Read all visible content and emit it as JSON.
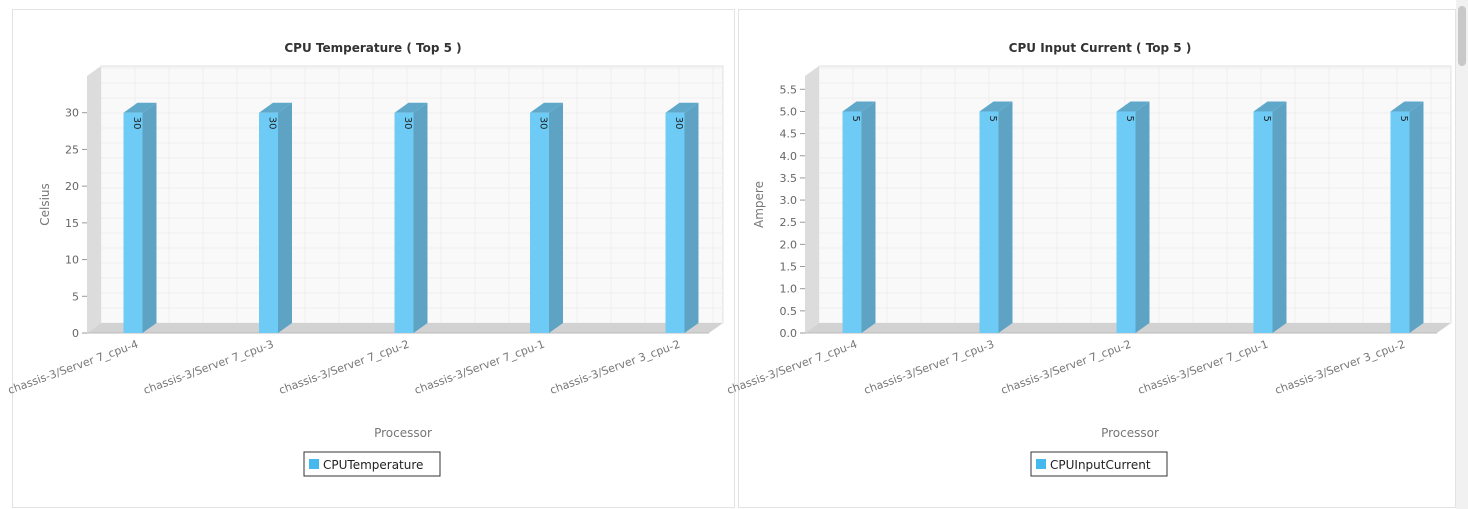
{
  "chart_data": [
    {
      "type": "bar",
      "title": "CPU Temperature ( Top 5 )",
      "xlabel": "Processor",
      "ylabel": "Celsius",
      "categories": [
        "chassis-3/Server 7_cpu-4",
        "chassis-3/Server 7_cpu-3",
        "chassis-3/Server 7_cpu-2",
        "chassis-3/Server 7_cpu-1",
        "chassis-3/Server 3_cpu-2"
      ],
      "series": [
        {
          "name": "CPUTemperature",
          "values": [
            30,
            30,
            30,
            30,
            30
          ]
        }
      ],
      "data_labels": [
        "30",
        "30",
        "30",
        "30",
        "30"
      ],
      "yticks": [
        "0",
        "5",
        "10",
        "15",
        "20",
        "25",
        "30"
      ],
      "ylim": [
        0,
        35
      ],
      "grid": true,
      "legend": "bottom",
      "color": "#6ecbf5"
    },
    {
      "type": "bar",
      "title": "CPU Input Current ( Top 5 )",
      "xlabel": "Processor",
      "ylabel": "Ampere",
      "categories": [
        "chassis-3/Server 7_cpu-4",
        "chassis-3/Server 7_cpu-3",
        "chassis-3/Server 7_cpu-2",
        "chassis-3/Server 7_cpu-1",
        "chassis-3/Server 3_cpu-2"
      ],
      "series": [
        {
          "name": "CPUInputCurrent",
          "values": [
            5,
            5,
            5,
            5,
            5
          ]
        }
      ],
      "data_labels": [
        "5",
        "5",
        "5",
        "5",
        "5"
      ],
      "yticks": [
        "0.0",
        "0.5",
        "1.0",
        "1.5",
        "2.0",
        "2.5",
        "3.0",
        "3.5",
        "4.0",
        "4.5",
        "5.0",
        "5.5"
      ],
      "ylim": [
        0,
        5.8
      ],
      "grid": true,
      "legend": "bottom",
      "color": "#6ecbf5"
    }
  ]
}
